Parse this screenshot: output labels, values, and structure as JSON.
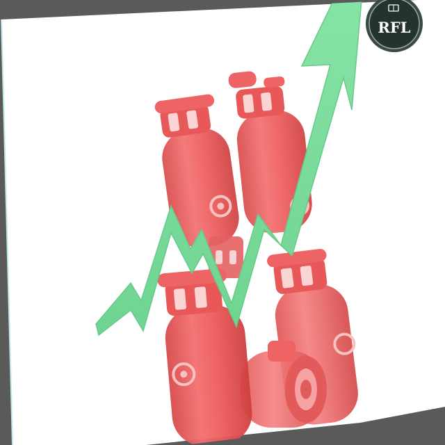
{
  "logo": {
    "text": "RFL",
    "ring_color": "#2f3b35",
    "face_color": "#24342c",
    "text_color": "#ffffff"
  },
  "colors": {
    "frame_background": "#5a5a5a",
    "paper": "#ffffff",
    "cylinder": "#ee5a5a",
    "cylinder_shadow": "#c93b3b",
    "arrow": "#78d99a"
  },
  "icons": [
    "gas-cylinder-icon",
    "trend-arrow-up-icon",
    "rfl-logo-badge"
  ]
}
